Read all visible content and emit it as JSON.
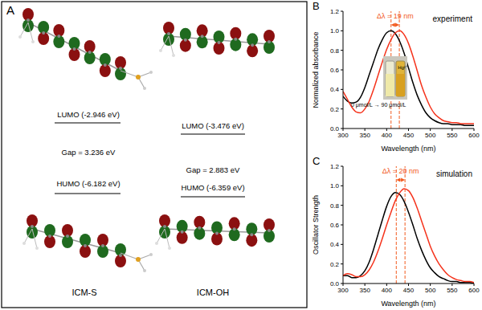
{
  "diagram": {
    "panel": "A",
    "molecules": [
      {
        "name": "ICM-S",
        "lumo": "LUMO (-2.946 eV)",
        "gap": "Gap = 3.236 eV",
        "homo": "HUMO (-6.182 eV)"
      },
      {
        "name": "ICM-OH",
        "lumo": "LUMO (-3.476 eV)",
        "gap": "Gap = 2.883 eV",
        "homo": "HUMO (-6.359 eV)"
      }
    ]
  },
  "chart_data": [
    {
      "type": "line",
      "panel": "B",
      "title": "experiment",
      "x_label": "Wavelength (nm)",
      "y_label": "Normalized absorbance",
      "x": [
        300,
        310,
        320,
        330,
        340,
        350,
        360,
        370,
        380,
        390,
        400,
        410,
        420,
        430,
        440,
        450,
        460,
        470,
        480,
        490,
        500,
        510,
        520,
        530,
        540,
        550,
        560,
        570,
        580,
        590,
        600
      ],
      "xlim": [
        300,
        600
      ],
      "xticks": [
        300,
        350,
        400,
        450,
        500,
        550,
        600
      ],
      "ylim": [
        0,
        1.2
      ],
      "yticks": [
        {
          "value": 0,
          "label": "0.0"
        },
        0.2,
        0.4,
        0.6,
        0.8,
        {
          "value": 1,
          "label": "1.0"
        },
        1.2
      ],
      "series": [
        {
          "color": "#000000",
          "values": [
            0.33,
            0.28,
            0.26,
            0.27,
            0.32,
            0.42,
            0.55,
            0.68,
            0.81,
            0.91,
            0.98,
            1.0,
            0.97,
            0.89,
            0.77,
            0.62,
            0.47,
            0.34,
            0.24,
            0.16,
            0.11,
            0.08,
            0.06,
            0.05,
            0.05,
            0.04,
            0.04,
            0.04,
            0.03,
            0.03,
            0.03
          ]
        },
        {
          "color": "#f5331c",
          "values": [
            0.38,
            0.3,
            0.22,
            0.17,
            0.16,
            0.2,
            0.28,
            0.4,
            0.54,
            0.68,
            0.81,
            0.91,
            0.98,
            1.0,
            0.96,
            0.87,
            0.74,
            0.59,
            0.44,
            0.32,
            0.22,
            0.15,
            0.11,
            0.08,
            0.07,
            0.06,
            0.06,
            0.05,
            0.05,
            0.05,
            0.05
          ]
        }
      ],
      "annotation": {
        "label": "Δλ = 19 nm",
        "peaks": [
          410,
          429
        ]
      },
      "inset": {
        "label": "Hg²⁺",
        "caption": "0 μmol/L → 90 μmol/L"
      }
    },
    {
      "type": "line",
      "panel": "C",
      "title": "simulation",
      "x_label": "Wavelength (nm)",
      "y_label": "Oscillator Strength",
      "x": [
        300,
        310,
        320,
        330,
        340,
        350,
        360,
        370,
        380,
        390,
        400,
        410,
        420,
        430,
        440,
        450,
        460,
        470,
        480,
        490,
        500,
        510,
        520,
        530,
        540,
        550,
        560,
        570,
        580,
        590,
        600
      ],
      "xlim": [
        300,
        600
      ],
      "xticks": [
        300,
        350,
        400,
        450,
        500,
        550,
        600
      ],
      "ylim": [
        0,
        1.2
      ],
      "yticks": [
        {
          "value": 0,
          "label": "0.0"
        },
        0.2,
        0.4,
        0.6,
        0.8,
        {
          "value": 1,
          "label": "1.0"
        },
        1.2
      ],
      "series": [
        {
          "color": "#000000",
          "values": [
            0.08,
            0.08,
            0.06,
            0.06,
            0.08,
            0.13,
            0.22,
            0.35,
            0.5,
            0.65,
            0.79,
            0.89,
            0.93,
            0.91,
            0.84,
            0.73,
            0.6,
            0.46,
            0.34,
            0.24,
            0.16,
            0.11,
            0.07,
            0.05,
            0.03,
            0.02,
            0.02,
            0.01,
            0.01,
            0.01,
            0.0
          ]
        },
        {
          "color": "#f5331c",
          "values": [
            0.08,
            0.1,
            0.09,
            0.07,
            0.07,
            0.09,
            0.14,
            0.22,
            0.33,
            0.46,
            0.6,
            0.73,
            0.85,
            0.93,
            0.97,
            0.95,
            0.88,
            0.77,
            0.64,
            0.51,
            0.38,
            0.28,
            0.2,
            0.14,
            0.09,
            0.06,
            0.04,
            0.03,
            0.02,
            0.02,
            0.01
          ]
        }
      ],
      "annotation": {
        "label": "Δλ = 20 nm",
        "peaks": [
          422,
          442
        ]
      }
    }
  ]
}
